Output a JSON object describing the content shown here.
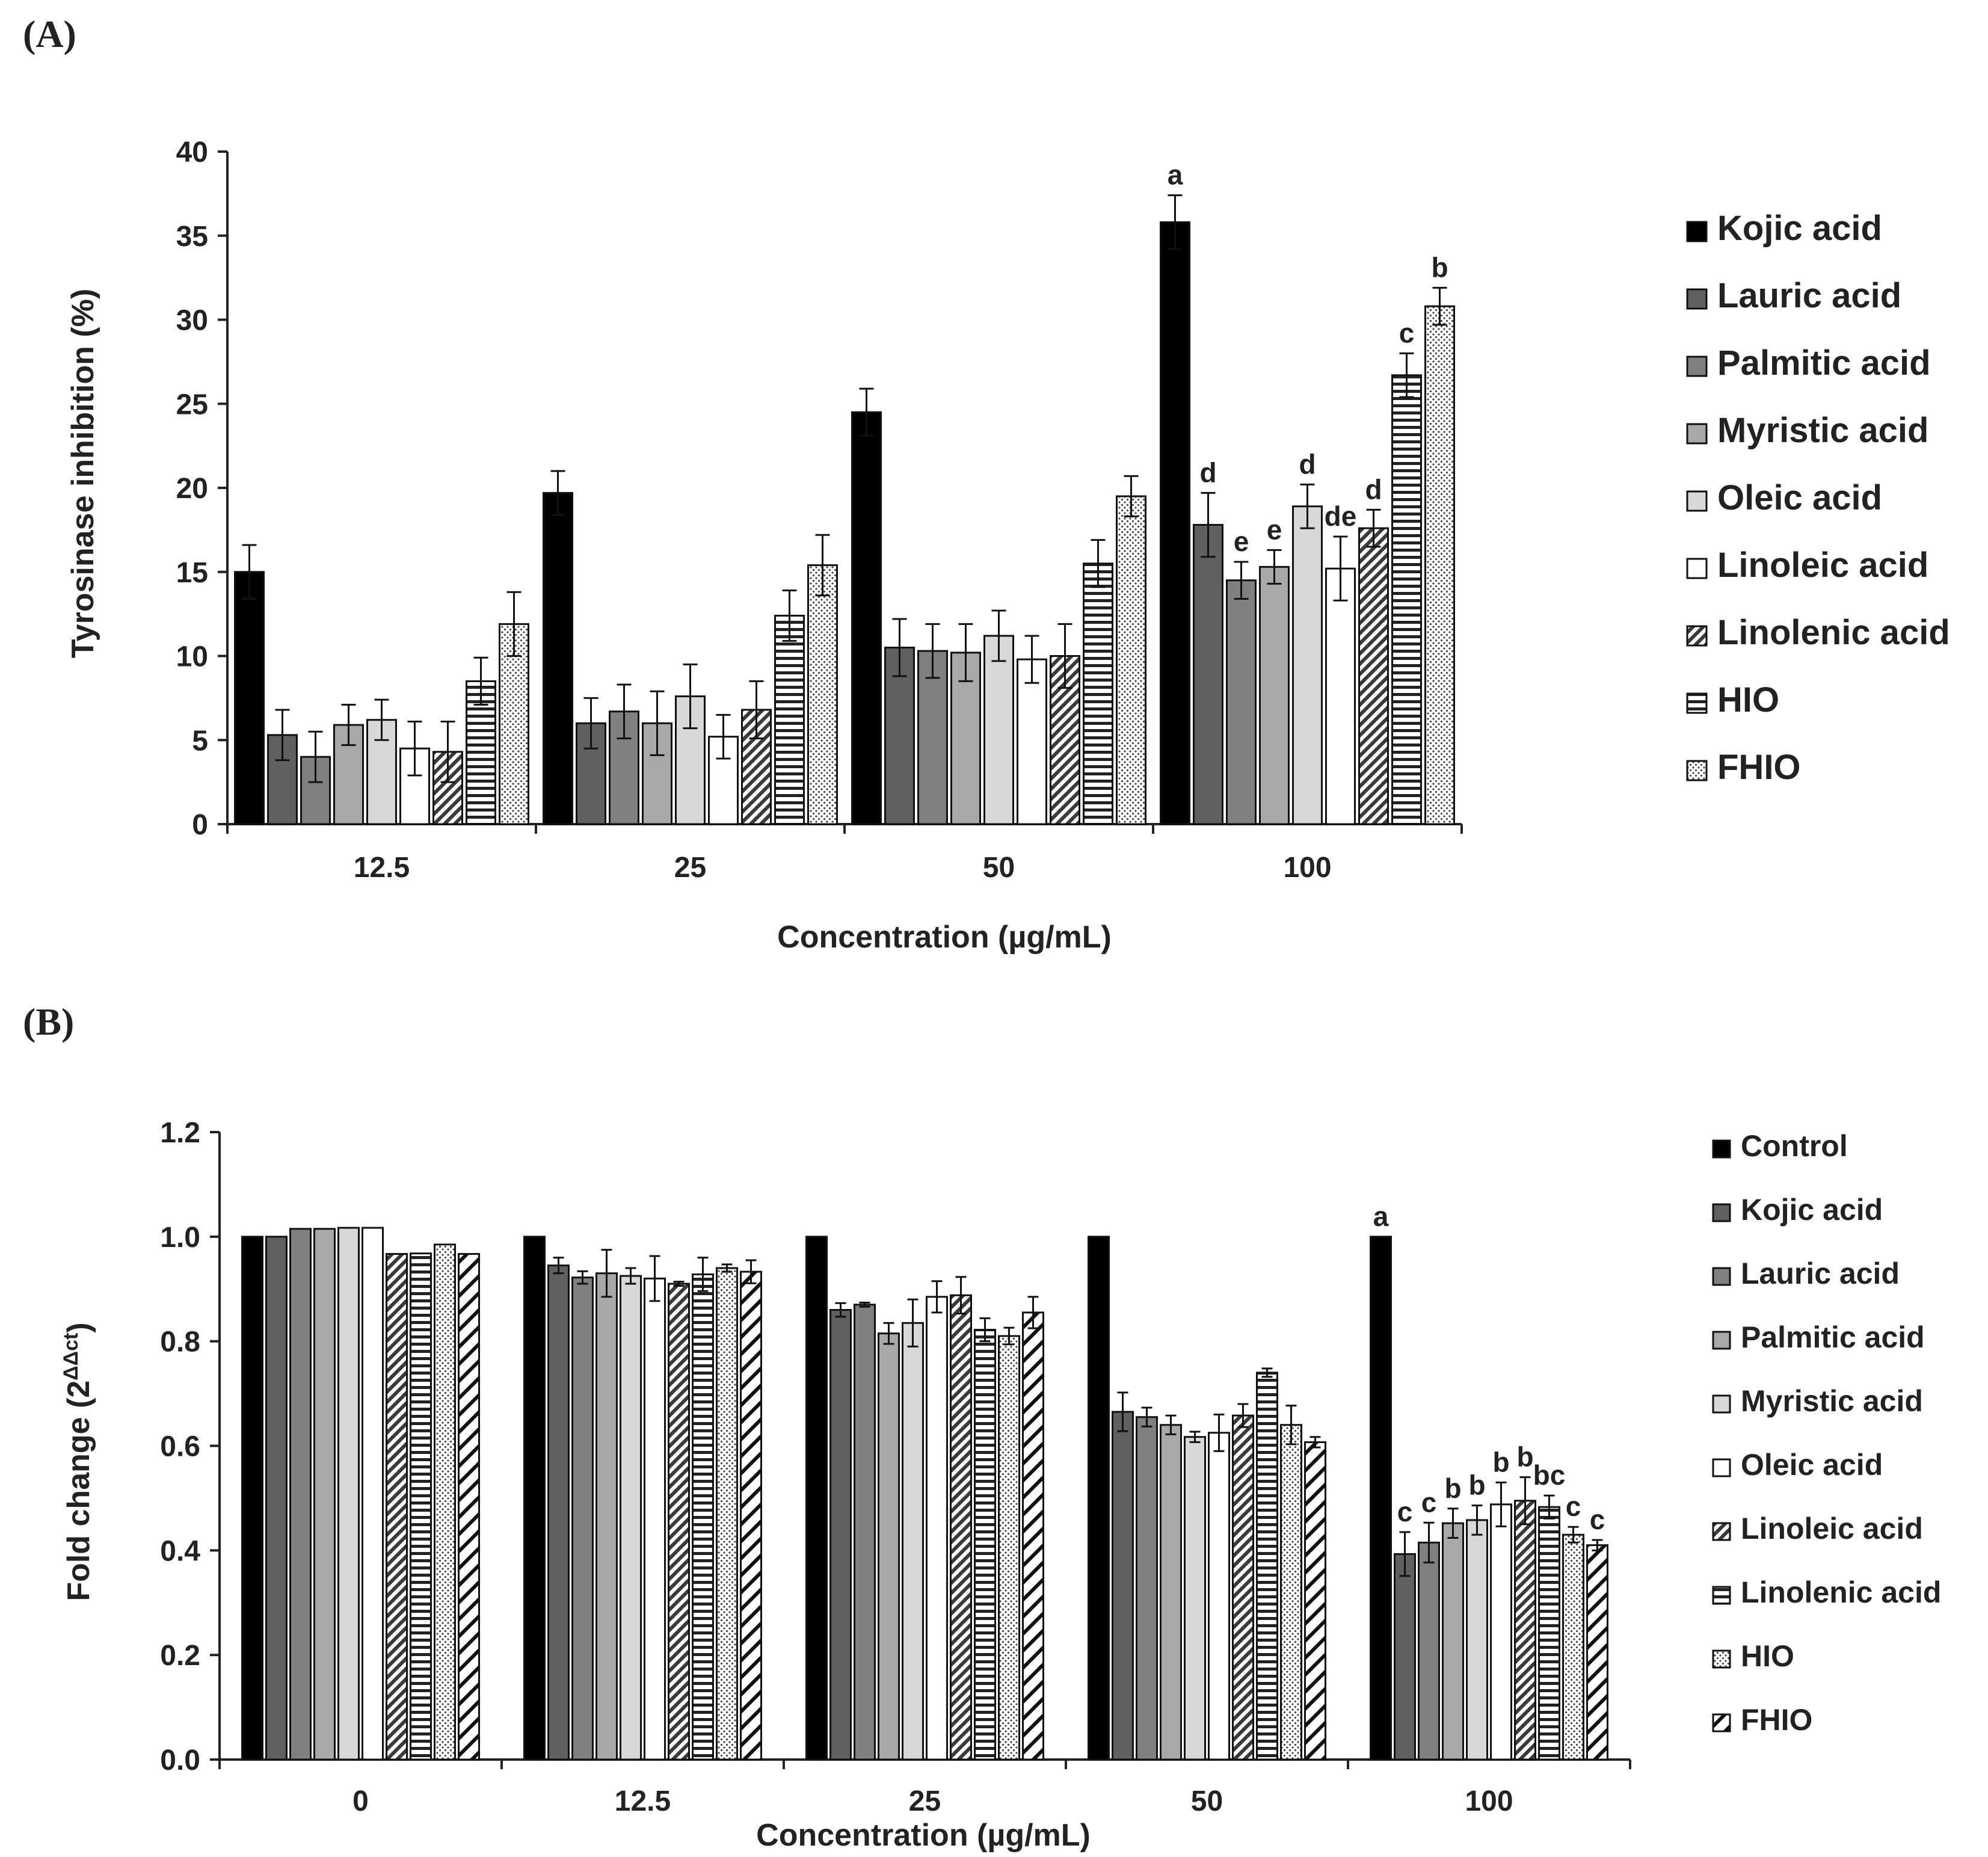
{
  "panels": [
    {
      "label": "(A)",
      "chart_data": {
        "type": "bar",
        "categories": [
          "12.5",
          "25",
          "50",
          "100"
        ],
        "xlabel": "Concentration (µg/mL)",
        "ylabel": "Tyrosinase inhibition (%)",
        "ylim": [
          0,
          40
        ],
        "yticks": [
          0,
          5,
          10,
          15,
          20,
          25,
          30,
          35,
          40
        ],
        "legend_position": "right",
        "series": [
          {
            "name": "Kojic acid",
            "pattern": "solid-black",
            "values": [
              15.0,
              19.7,
              24.5,
              35.8
            ],
            "errors": [
              1.6,
              1.3,
              1.4,
              1.6
            ],
            "labels": [
              "",
              "",
              "",
              "a"
            ]
          },
          {
            "name": "Lauric acid",
            "pattern": "solid-dark",
            "values": [
              5.3,
              6.0,
              10.5,
              17.8
            ],
            "errors": [
              1.5,
              1.5,
              1.7,
              1.9
            ],
            "labels": [
              "",
              "",
              "",
              "d"
            ]
          },
          {
            "name": "Palmitic acid",
            "pattern": "solid-mid",
            "values": [
              4.0,
              6.7,
              10.3,
              14.5
            ],
            "errors": [
              1.5,
              1.6,
              1.6,
              1.1
            ],
            "labels": [
              "",
              "",
              "",
              "e"
            ]
          },
          {
            "name": "Myristic acid",
            "pattern": "solid-light",
            "values": [
              5.9,
              6.0,
              10.2,
              15.3
            ],
            "errors": [
              1.2,
              1.9,
              1.7,
              1.0
            ],
            "labels": [
              "",
              "",
              "",
              "e"
            ]
          },
          {
            "name": "Oleic acid",
            "pattern": "solid-lighter",
            "values": [
              6.2,
              7.6,
              11.2,
              18.9
            ],
            "errors": [
              1.2,
              1.9,
              1.5,
              1.3
            ],
            "labels": [
              "",
              "",
              "",
              "d"
            ]
          },
          {
            "name": "Linoleic acid",
            "pattern": "white",
            "values": [
              4.5,
              5.2,
              9.8,
              15.2
            ],
            "errors": [
              1.6,
              1.3,
              1.4,
              1.9
            ],
            "labels": [
              "",
              "",
              "",
              "de"
            ]
          },
          {
            "name": "Linolenic acid",
            "pattern": "diagonal-dense",
            "values": [
              4.3,
              6.8,
              10.0,
              17.6
            ],
            "errors": [
              1.8,
              1.7,
              1.9,
              1.1
            ],
            "labels": [
              "",
              "",
              "",
              "d"
            ]
          },
          {
            "name": "HIO",
            "pattern": "horizontal",
            "values": [
              8.5,
              12.4,
              15.5,
              26.7
            ],
            "errors": [
              1.4,
              1.5,
              1.4,
              1.3
            ],
            "labels": [
              "",
              "",
              "",
              "c"
            ]
          },
          {
            "name": "FHIO",
            "pattern": "dotted",
            "values": [
              11.9,
              15.4,
              19.5,
              30.8
            ],
            "errors": [
              1.9,
              1.8,
              1.2,
              1.1
            ],
            "labels": [
              "",
              "",
              "",
              "b"
            ]
          }
        ]
      }
    },
    {
      "label": "(B)",
      "chart_data": {
        "type": "bar",
        "categories": [
          "0",
          "12.5",
          "25",
          "50",
          "100"
        ],
        "xlabel": "Concentration (µg/mL)",
        "ylabel_main": "Fold change (2",
        "ylabel_sup": "ΔΔct",
        "ylabel_end": ")",
        "ylim": [
          0,
          1.2
        ],
        "yticks": [
          "0.0",
          "0.2",
          "0.4",
          "0.6",
          "0.8",
          "1.0",
          "1.2"
        ],
        "legend_position": "right",
        "series": [
          {
            "name": "Control",
            "pattern": "solid-black",
            "values": [
              1.0,
              1.0,
              1.0,
              1.0,
              1.0
            ],
            "errors": [
              0,
              0,
              0,
              0,
              0
            ],
            "labels": [
              "",
              "",
              "",
              "",
              "a"
            ]
          },
          {
            "name": "Kojic acid",
            "pattern": "solid-dark",
            "values": [
              1.0,
              0.945,
              0.86,
              0.665,
              0.393
            ],
            "errors": [
              0,
              0.015,
              0.013,
              0.037,
              0.042
            ],
            "labels": [
              "",
              "",
              "",
              "",
              "c"
            ]
          },
          {
            "name": "Lauric acid",
            "pattern": "solid-mid",
            "values": [
              1.015,
              0.922,
              0.87,
              0.655,
              0.415
            ],
            "errors": [
              0,
              0.012,
              0.004,
              0.018,
              0.038
            ],
            "labels": [
              "",
              "",
              "",
              "",
              "c"
            ]
          },
          {
            "name": "Palmitic acid",
            "pattern": "solid-light",
            "values": [
              1.015,
              0.93,
              0.815,
              0.64,
              0.452
            ],
            "errors": [
              0,
              0.045,
              0.02,
              0.018,
              0.028
            ],
            "labels": [
              "",
              "",
              "",
              "",
              "b"
            ]
          },
          {
            "name": "Myristic acid",
            "pattern": "solid-lighter",
            "values": [
              1.017,
              0.925,
              0.835,
              0.617,
              0.458
            ],
            "errors": [
              0,
              0.015,
              0.045,
              0.01,
              0.028
            ],
            "labels": [
              "",
              "",
              "",
              "",
              "b"
            ]
          },
          {
            "name": "Oleic acid",
            "pattern": "white",
            "values": [
              1.017,
              0.92,
              0.885,
              0.625,
              0.488
            ],
            "errors": [
              0,
              0.043,
              0.03,
              0.035,
              0.042
            ],
            "labels": [
              "",
              "",
              "",
              "",
              "b"
            ]
          },
          {
            "name": "Linoleic acid",
            "pattern": "diagonal-dense",
            "values": [
              0.967,
              0.91,
              0.888,
              0.658,
              0.495
            ],
            "errors": [
              0,
              0.004,
              0.035,
              0.022,
              0.045
            ],
            "labels": [
              "",
              "",
              "",
              "",
              "b"
            ]
          },
          {
            "name": "Linolenic acid",
            "pattern": "horizontal",
            "values": [
              0.968,
              0.928,
              0.822,
              0.74,
              0.483
            ],
            "errors": [
              0,
              0.032,
              0.022,
              0.008,
              0.022
            ],
            "labels": [
              "",
              "",
              "",
              "",
              "bc"
            ]
          },
          {
            "name": "HIO",
            "pattern": "dotted",
            "values": [
              0.985,
              0.94,
              0.81,
              0.64,
              0.43
            ],
            "errors": [
              0,
              0.007,
              0.016,
              0.037,
              0.015
            ],
            "labels": [
              "",
              "",
              "",
              "",
              "c"
            ]
          },
          {
            "name": "FHIO",
            "pattern": "diagonal-wide",
            "values": [
              0.967,
              0.933,
              0.855,
              0.607,
              0.41
            ],
            "errors": [
              0,
              0.022,
              0.03,
              0.01,
              0.01
            ],
            "labels": [
              "",
              "",
              "",
              "",
              "c"
            ]
          }
        ]
      }
    }
  ],
  "colors": {
    "solid-black": "#000000",
    "solid-dark": "#606060",
    "solid-mid": "#808080",
    "solid-light": "#a8a8a8",
    "solid-lighter": "#d8d8d8",
    "white": "#ffffff"
  }
}
